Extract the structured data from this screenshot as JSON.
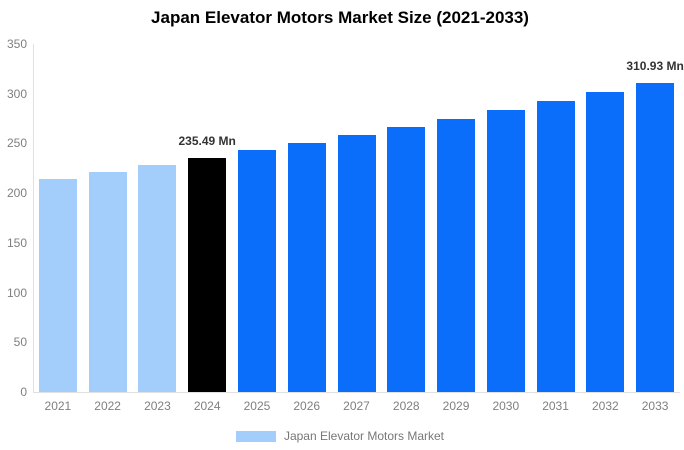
{
  "chart_data": {
    "type": "bar",
    "title": "Japan Elevator Motors Market Size (2021-2033)",
    "categories": [
      "2021",
      "2022",
      "2023",
      "2024",
      "2025",
      "2026",
      "2027",
      "2028",
      "2029",
      "2030",
      "2031",
      "2032",
      "2033"
    ],
    "series": [
      {
        "name": "Japan Elevator Motors Market",
        "values": [
          214.63,
          221.37,
          228.32,
          235.49,
          242.89,
          250.52,
          258.39,
          266.51,
          274.88,
          283.52,
          292.43,
          301.61,
          310.93
        ]
      }
    ],
    "unit": "Mn",
    "xlabel": "",
    "ylabel": "",
    "ylim": [
      0,
      350
    ],
    "yticks": [
      0,
      50,
      100,
      150,
      200,
      250,
      300,
      350
    ],
    "grid": false,
    "bar_colors": [
      "#a3cdfa",
      "#a3cdfa",
      "#a3cdfa",
      "#000000",
      "#0a6efa",
      "#0a6efa",
      "#0a6efa",
      "#0a6efa",
      "#0a6efa",
      "#0a6efa",
      "#0a6efa",
      "#0a6efa",
      "#0a6efa"
    ],
    "data_labels": [
      {
        "category": "2024",
        "text": "235.49 Mn"
      },
      {
        "category": "2033",
        "text": "310.93 Mn"
      }
    ],
    "legend": {
      "position": "bottom",
      "label": "Japan Elevator Motors Market",
      "swatch_color": "#a3cdfa"
    },
    "colors": {
      "light_blue": "#a3cdfa",
      "blue": "#0a6efa",
      "highlight_black": "#000000",
      "axis_line": "#e0e0e0",
      "tick_text": "#7f7f7f",
      "value_label_text": "#333333",
      "title_text": "#000000"
    }
  }
}
